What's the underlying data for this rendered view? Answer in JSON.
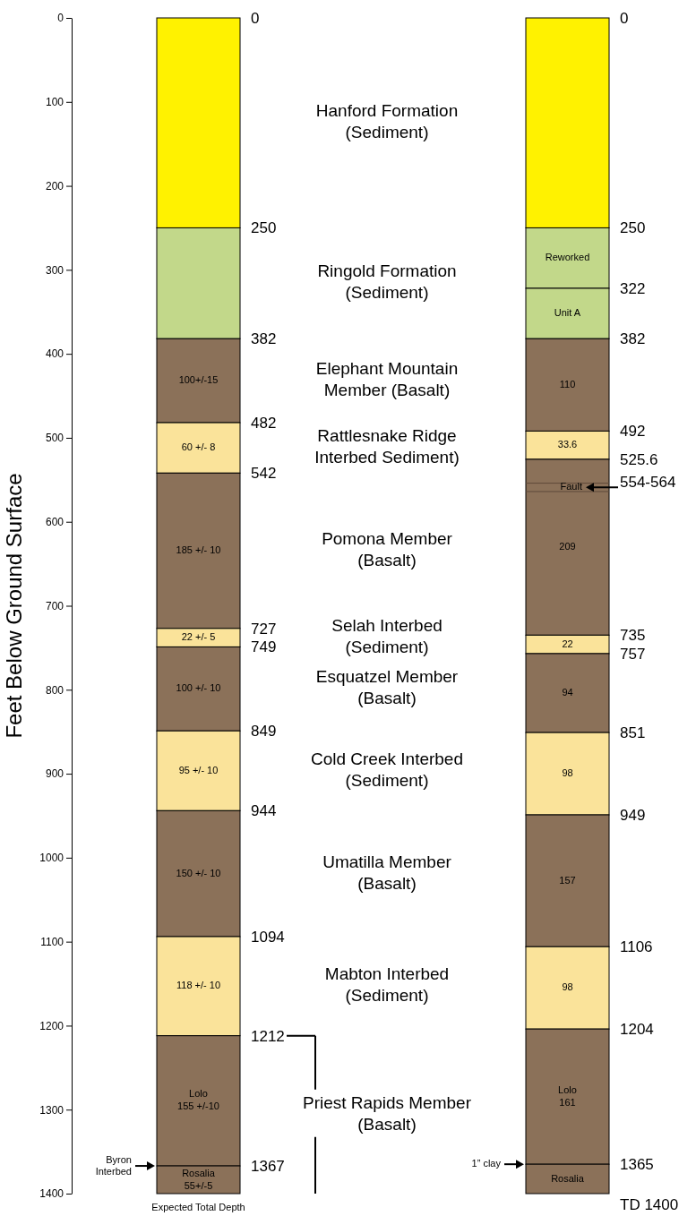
{
  "chart_data": [
    {
      "type": "bar",
      "stacked": true,
      "categories": [
        null
      ],
      "ylabel": "Feet Below Ground Surface",
      "ylim": [
        1400,
        0
      ],
      "yticks": [
        0,
        100,
        200,
        300,
        400,
        500,
        600,
        700,
        800,
        900,
        1000,
        1100,
        1200,
        1300,
        1400
      ],
      "y2lim": [
        1400,
        0
      ],
      "y2ticks": [
        0,
        250,
        382,
        482,
        542,
        727,
        749,
        849,
        944,
        1094,
        1212,
        1367
      ],
      "series": [
        {
          "color": "#fff200",
          "values": [
            250
          ]
        },
        {
          "color": "#c2d88a",
          "values": [
            132
          ]
        },
        {
          "color": "#8b7159",
          "values": [
            100
          ],
          "value_labels": [
            "100+/-15"
          ]
        },
        {
          "color": "#fae39a",
          "values": [
            60
          ],
          "value_labels": [
            "60 +/- 8"
          ]
        },
        {
          "color": "#8b7159",
          "values": [
            185
          ],
          "value_labels": [
            "185 +/- 10"
          ]
        },
        {
          "color": "#fae39a",
          "values": [
            22
          ],
          "value_labels": [
            "22 +/- 5"
          ]
        },
        {
          "color": "#8b7159",
          "values": [
            100
          ],
          "value_labels": [
            "100 +/- 10"
          ]
        },
        {
          "color": "#fae39a",
          "values": [
            95
          ],
          "value_labels": [
            "95 +/- 10"
          ]
        },
        {
          "color": "#8b7159",
          "values": [
            150
          ],
          "value_labels": [
            "150 +/- 10"
          ]
        },
        {
          "color": "#fae39a",
          "values": [
            118
          ],
          "value_labels": [
            "118 +/- 10"
          ]
        },
        {
          "color": "#8b7159",
          "values": [
            155
          ],
          "value_labels": [
            "Lolo\n155 +/-10"
          ]
        },
        {
          "color": "#8b7159",
          "values": [
            33
          ],
          "value_labels": [
            "Rosalia\n55+/-5"
          ]
        }
      ],
      "annotations": [
        "Hanford Formation\n(Sediment)",
        "Ringold Formation\n(Sediment)",
        "Elephant Mountain\nMember  (Basalt)",
        "Rattlesnake Ridge\nInterbed  Sediment)",
        "Pomona Member\n(Basalt)",
        "Selah Interbed\n(Sediment)",
        "Esquatzel Member\n(Basalt)",
        "Cold Creek Interbed\n(Sediment)",
        "Umatilla Member\n(Basalt)",
        "Mabton Interbed\n(Sediment)",
        "Priest Rapids Member\n(Basalt)",
        "Byron\nInterbed",
        "Expected Total Depth"
      ]
    },
    {
      "type": "bar",
      "stacked": true,
      "categories": [
        null
      ],
      "ylim": [
        1400,
        0
      ],
      "yticks": [
        0,
        250,
        322,
        382,
        492,
        525.6,
        735,
        757,
        851,
        949,
        1106,
        1204,
        1365
      ],
      "ref_lines": [
        {
          "axis": "y",
          "value": 554,
          "label": "554-564"
        },
        {
          "axis": "y",
          "value": 564
        }
      ],
      "series": [
        {
          "color": "#fff200",
          "values": [
            250
          ]
        },
        {
          "color": "#c2d88a",
          "values": [
            72
          ],
          "value_labels": [
            "Reworked"
          ]
        },
        {
          "color": "#c2d88a",
          "values": [
            60
          ],
          "value_labels": [
            "Unit A"
          ]
        },
        {
          "color": "#8b7159",
          "values": [
            110
          ],
          "value_labels": [
            "110"
          ]
        },
        {
          "color": "#fae39a",
          "values": [
            33.6
          ],
          "value_labels": [
            "33.6"
          ]
        },
        {
          "color": "#8b7159",
          "values": [
            209.4
          ],
          "value_labels": [
            "209"
          ]
        },
        {
          "color": "#fae39a",
          "values": [
            22
          ],
          "value_labels": [
            "22"
          ]
        },
        {
          "color": "#8b7159",
          "values": [
            94
          ],
          "value_labels": [
            "94"
          ]
        },
        {
          "color": "#fae39a",
          "values": [
            98
          ],
          "value_labels": [
            "98"
          ]
        },
        {
          "color": "#8b7159",
          "values": [
            157
          ],
          "value_labels": [
            "157"
          ]
        },
        {
          "color": "#fae39a",
          "values": [
            98
          ],
          "value_labels": [
            "98"
          ]
        },
        {
          "color": "#8b7159",
          "values": [
            161
          ],
          "value_labels": [
            "Lolo\n161"
          ]
        },
        {
          "color": "#8b7159",
          "values": [
            35
          ],
          "value_labels": [
            "Rosalia"
          ]
        }
      ],
      "annotations": [
        "Fault",
        "1” clay",
        "TD 1400"
      ]
    }
  ]
}
